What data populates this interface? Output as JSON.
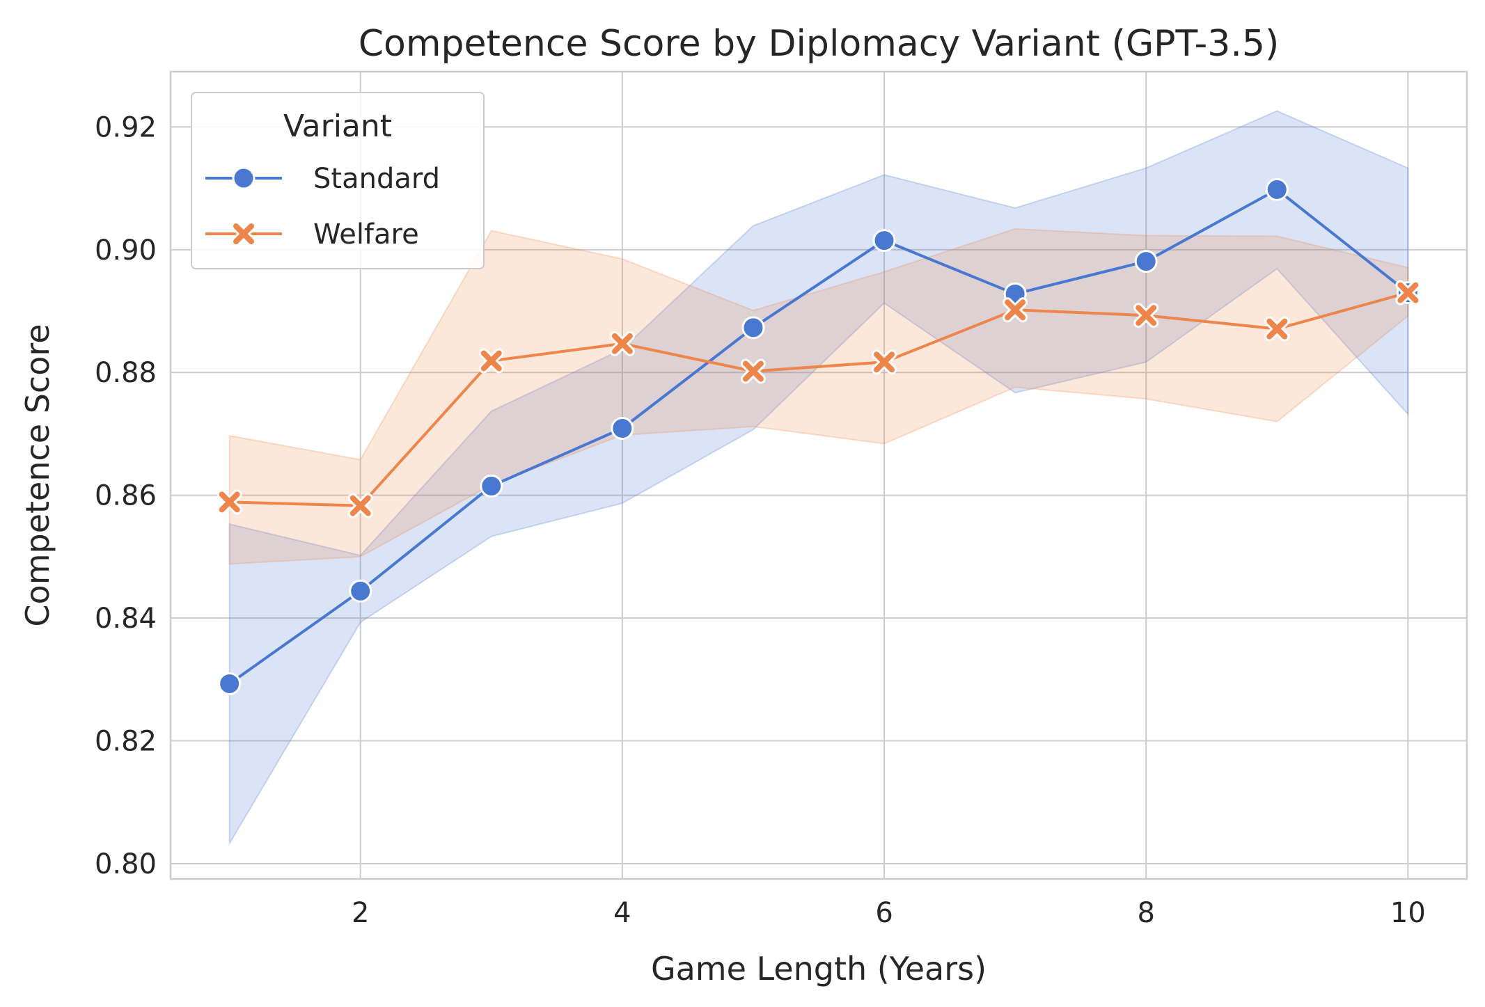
{
  "chart_data": {
    "type": "line",
    "title": "Competence Score by Diplomacy Variant (GPT-3.5)",
    "xlabel": "Game Length (Years)",
    "ylabel": "Competence Score",
    "xlim": [
      0.55,
      10.45
    ],
    "ylim": [
      0.7975,
      0.929
    ],
    "xticks": [
      2,
      4,
      6,
      8,
      10
    ],
    "xtick_labels": [
      "2",
      "4",
      "6",
      "8",
      "10"
    ],
    "yticks": [
      0.8,
      0.82,
      0.84,
      0.86,
      0.88,
      0.9,
      0.92
    ],
    "ytick_labels": [
      "0.80",
      "0.82",
      "0.84",
      "0.86",
      "0.88",
      "0.90",
      "0.92"
    ],
    "grid": true,
    "legend": {
      "title": "Variant",
      "position": "top-left"
    },
    "x": [
      1,
      2,
      3,
      4,
      5,
      6,
      7,
      8,
      9,
      10
    ],
    "series": [
      {
        "name": "Standard",
        "marker": "circle",
        "color": "#4878d0",
        "values": [
          0.8293,
          0.8444,
          0.8615,
          0.8709,
          0.8873,
          0.9015,
          0.8928,
          0.8981,
          0.9098,
          0.893
        ],
        "ci_lower": [
          0.8033,
          0.8393,
          0.8533,
          0.8587,
          0.8707,
          0.8913,
          0.8767,
          0.8817,
          0.8969,
          0.8732
        ],
        "ci_upper": [
          0.8553,
          0.8502,
          0.8737,
          0.8838,
          0.9039,
          0.9122,
          0.9068,
          0.9133,
          0.9226,
          0.9133
        ]
      },
      {
        "name": "Welfare",
        "marker": "x",
        "color": "#ee854a",
        "values": [
          0.8589,
          0.8583,
          0.8819,
          0.8847,
          0.8802,
          0.8817,
          0.8902,
          0.8893,
          0.8871,
          0.893
        ],
        "ci_lower": [
          0.8488,
          0.85,
          0.8617,
          0.8698,
          0.8712,
          0.8684,
          0.8776,
          0.8757,
          0.872,
          0.8892
        ],
        "ci_upper": [
          0.8697,
          0.8658,
          0.9031,
          0.8985,
          0.8901,
          0.8964,
          0.9034,
          0.9023,
          0.9022,
          0.8971
        ]
      }
    ]
  }
}
